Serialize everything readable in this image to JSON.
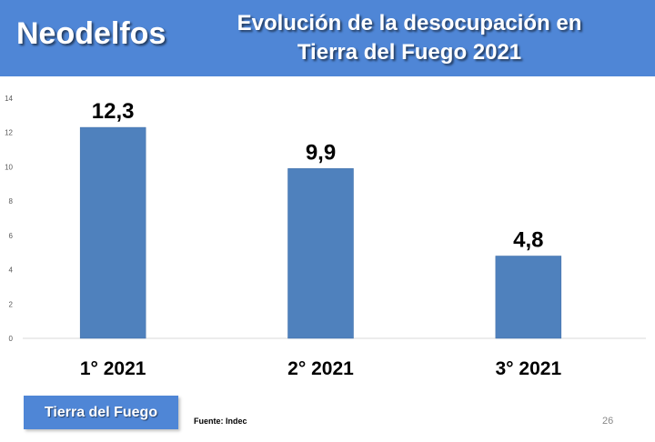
{
  "header": {
    "brand": "Neodelfos",
    "title_line1": "Evolución de la desocupación en",
    "title_line2": "Tierra del Fuego 2021"
  },
  "chart_data": {
    "type": "bar",
    "categories": [
      "1° 2021",
      "2° 2021",
      "3° 2021"
    ],
    "values": [
      12.3,
      9.9,
      4.8
    ],
    "data_labels": [
      "12,3",
      "9,9",
      "4,8"
    ],
    "ylim": [
      0,
      14
    ],
    "yticks": [
      0,
      2,
      4,
      6,
      8,
      10,
      12,
      14
    ],
    "bar_color": "#4f81bd",
    "grid": false,
    "legend": "none"
  },
  "footer": {
    "region_label": "Tierra del Fuego",
    "source": "Fuente: Indec",
    "page_number": "26"
  },
  "colors": {
    "header_bg": "#4f86d6",
    "bar": "#4f81bd"
  }
}
